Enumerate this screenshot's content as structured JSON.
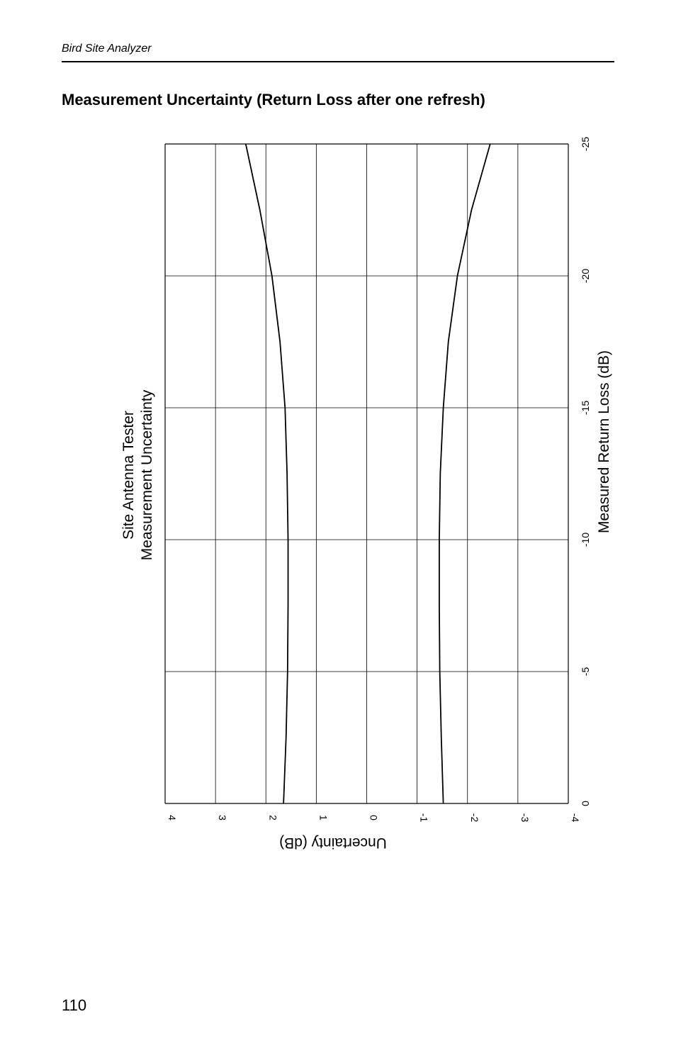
{
  "page": {
    "running_header": "Bird Site Analyzer",
    "section_title": "Measurement Uncertainty (Return Loss after one refresh)",
    "page_number": "110"
  },
  "chart_data": {
    "type": "line",
    "orientation": "rotated 90 degrees counter-clockwise",
    "title_lines": [
      "Site Antenna Tester",
      "Measurement Uncertainty"
    ],
    "xlabel": "Measured Return Loss (dB)",
    "ylabel": "Uncertainty (dB)",
    "xlim": [
      0,
      -25
    ],
    "ylim": [
      -4,
      4
    ],
    "x_ticks": [
      "0",
      "-5",
      "-10",
      "-15",
      "-20",
      "-25"
    ],
    "y_ticks": [
      "4",
      "3",
      "2",
      "1",
      "0",
      "-1",
      "-2",
      "-3",
      "-4"
    ],
    "grid": true,
    "series": [
      {
        "x": [
          0,
          -2.5,
          -5,
          -7.5,
          -10,
          -12.5,
          -15,
          -17.5,
          -20,
          -22.5,
          -25
        ],
        "y": [
          1.65,
          1.6,
          1.57,
          1.56,
          1.56,
          1.58,
          1.62,
          1.72,
          1.88,
          2.12,
          2.4
        ],
        "color": "#000000"
      },
      {
        "x": [
          0,
          -2.5,
          -5,
          -7.5,
          -10,
          -12.5,
          -15,
          -17.5,
          -20,
          -22.5,
          -25
        ],
        "y": [
          -1.52,
          -1.48,
          -1.45,
          -1.44,
          -1.44,
          -1.46,
          -1.52,
          -1.62,
          -1.8,
          -2.08,
          -2.45
        ],
        "color": "#000000"
      }
    ]
  }
}
